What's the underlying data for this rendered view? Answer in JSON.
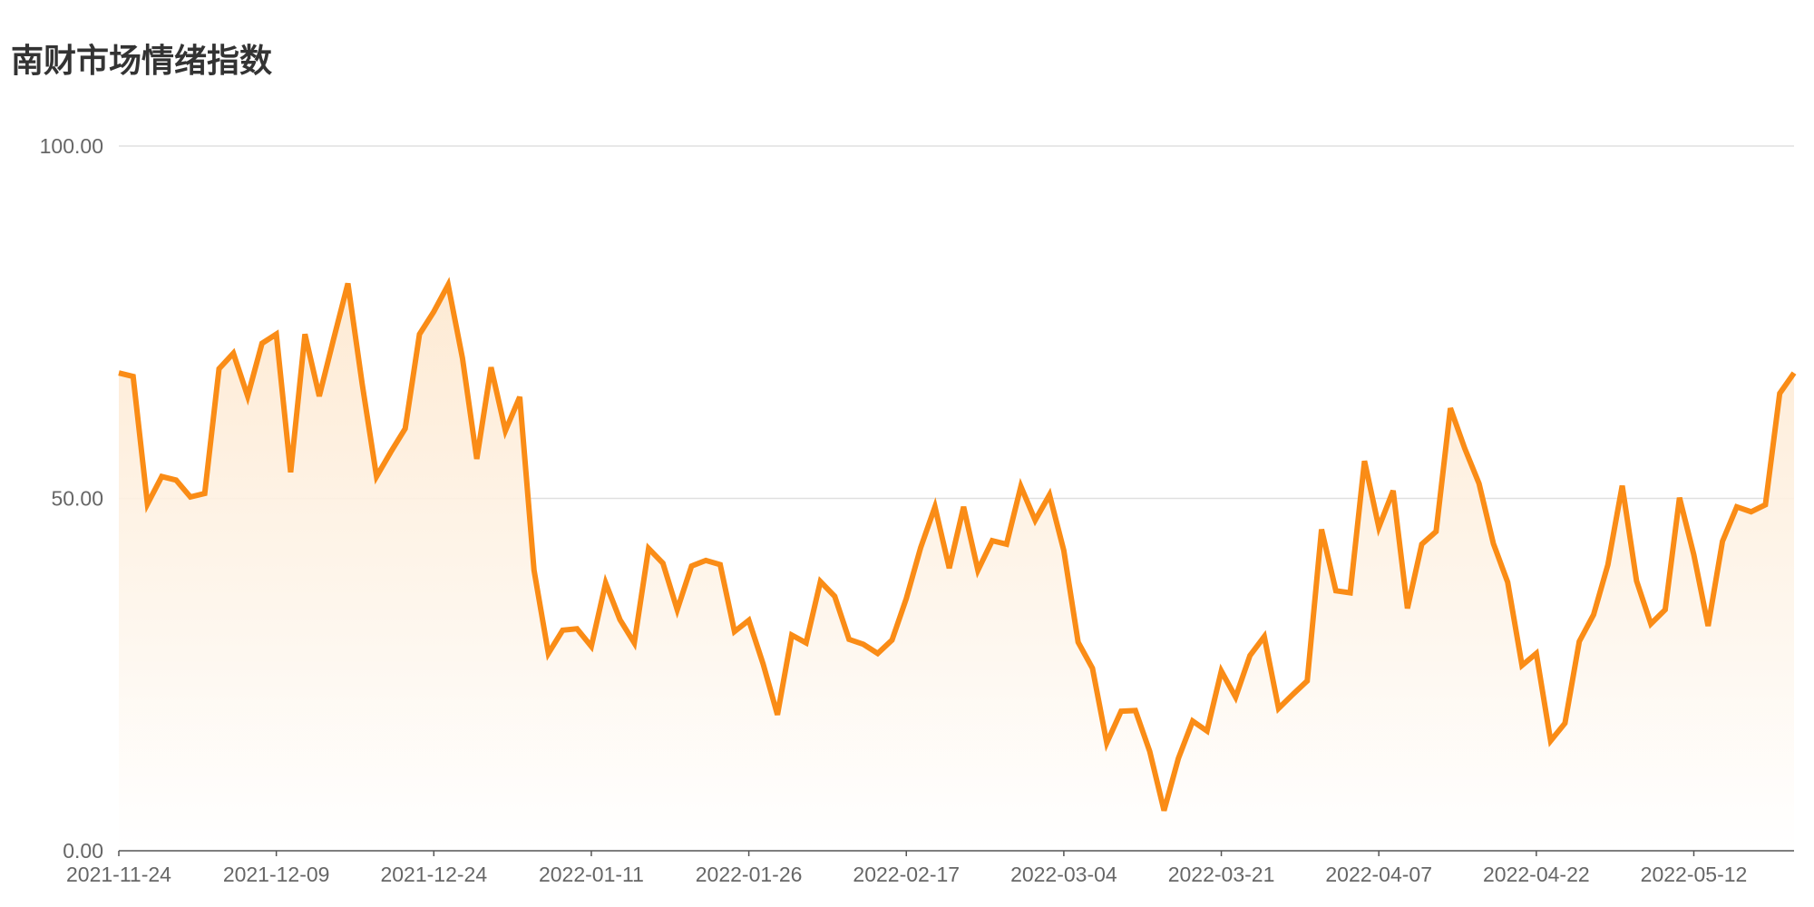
{
  "title": "南财市场情绪指数",
  "colors": {
    "line": "#fa8c16",
    "area_top": "#fde8cf",
    "area_bottom": "#ffffff",
    "grid": "#e0e0e0",
    "axis": "#555555",
    "title": "#333333",
    "tick": "#666666"
  },
  "chart_data": {
    "type": "area",
    "title": "南财市场情绪指数",
    "xlabel": "",
    "ylabel": "",
    "ylim": [
      0,
      100
    ],
    "y_ticks": [
      "0.00",
      "50.00",
      "100.00"
    ],
    "x_tick_labels": [
      "2021-11-24",
      "2021-12-09",
      "2021-12-24",
      "2022-01-11",
      "2022-01-26",
      "2022-02-17",
      "2022-03-04",
      "2022-03-21",
      "2022-04-07",
      "2022-04-22",
      "2022-05-12"
    ],
    "x_tick_indices": [
      0,
      11,
      22,
      33,
      44,
      55,
      66,
      77,
      88,
      99,
      110
    ],
    "grid": true,
    "legend": "none",
    "series": [
      {
        "values": [
          67.8,
          67.3,
          49.2,
          53.1,
          52.6,
          50.2,
          50.7,
          68.4,
          70.6,
          64.5,
          72.0,
          73.3,
          53.7,
          73.3,
          64.5,
          72.6,
          80.5,
          66.2,
          53.1,
          56.6,
          59.9,
          73.3,
          76.5,
          80.3,
          69.9,
          55.6,
          68.6,
          59.6,
          64.4,
          39.8,
          28.0,
          31.3,
          31.5,
          29.0,
          38.0,
          32.8,
          29.5,
          42.9,
          40.8,
          34.2,
          40.4,
          41.2,
          40.6,
          31.1,
          32.7,
          26.5,
          19.3,
          30.6,
          29.5,
          38.2,
          36.1,
          30.0,
          29.3,
          28.0,
          29.9,
          35.8,
          43.0,
          48.8,
          40.1,
          48.8,
          39.8,
          44.0,
          43.5,
          51.7,
          46.9,
          50.5,
          42.6,
          29.6,
          25.9,
          15.3,
          19.8,
          19.9,
          14.1,
          5.7,
          13.1,
          18.4,
          17.0,
          25.5,
          21.8,
          27.7,
          30.4,
          20.2,
          22.2,
          24.1,
          45.6,
          36.9,
          36.6,
          55.3,
          45.9,
          51.1,
          34.4,
          43.5,
          45.3,
          62.8,
          57.1,
          52.1,
          43.6,
          38.1,
          26.3,
          28.0,
          15.6,
          18.1,
          29.7,
          33.5,
          40.6,
          51.8,
          38.3,
          32.2,
          34.2,
          50.1,
          42.0,
          31.9,
          43.9,
          48.8,
          48.1,
          49.1,
          64.9,
          67.8
        ]
      }
    ]
  }
}
